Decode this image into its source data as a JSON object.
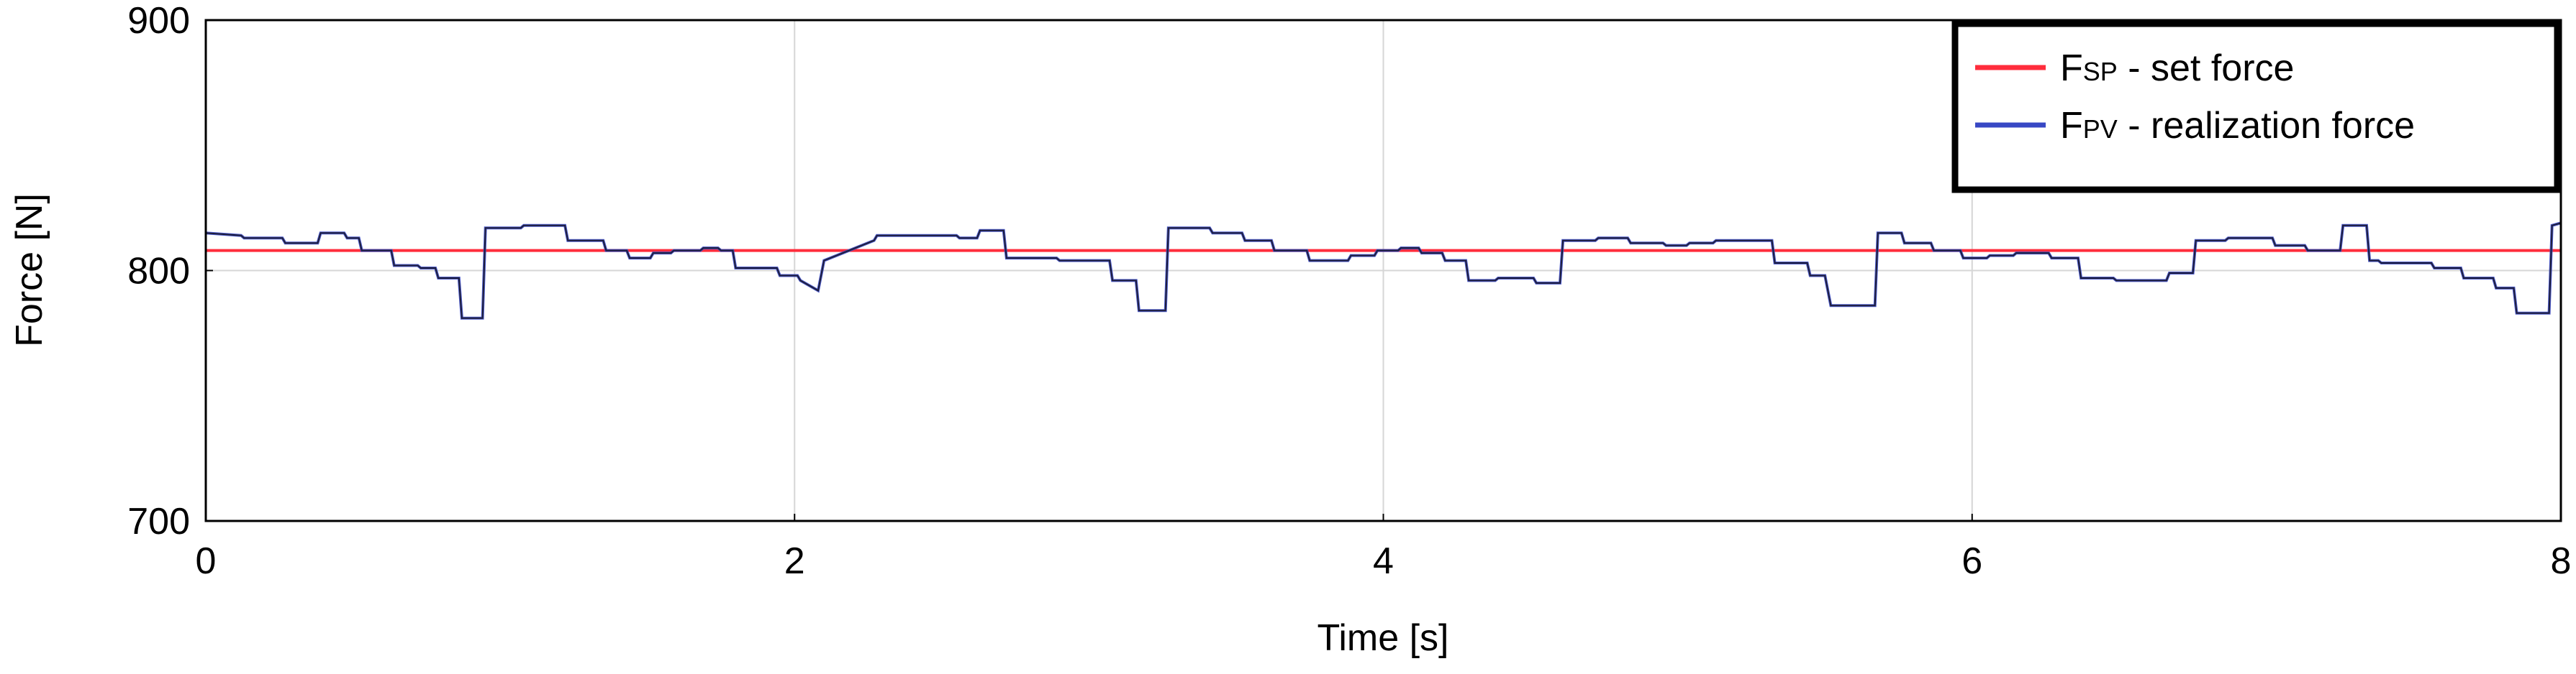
{
  "chart_data": {
    "type": "line",
    "title": "",
    "xlabel": "Time [s]",
    "ylabel": "Force [N]",
    "xlim": [
      0,
      8
    ],
    "ylim": [
      700,
      900
    ],
    "xticks": [
      "0",
      "2",
      "4",
      "6",
      "8"
    ],
    "yticks": [
      "700",
      "800",
      "900"
    ],
    "grid": true,
    "legend": {
      "position": "top-right",
      "frame": "thick"
    },
    "series": [
      {
        "name_main": "F",
        "name_sub": "SP",
        "name_rest": " - set force",
        "color": "#ff2d3c",
        "x": [
          0,
          8
        ],
        "y": [
          808,
          808
        ]
      },
      {
        "name_main": "F",
        "name_sub": "PV",
        "name_rest": " - realization force",
        "color": "#3848c4",
        "x": [
          0,
          0.12,
          0.13,
          0.26,
          0.27,
          0.38,
          0.39,
          0.47,
          0.48,
          0.52,
          0.53,
          0.63,
          0.64,
          0.72,
          0.73,
          0.78,
          0.79,
          0.86,
          0.87,
          0.94,
          0.95,
          1.07,
          1.08,
          1.22,
          1.23,
          1.35,
          1.36,
          1.43,
          1.44,
          1.51,
          1.52,
          1.58,
          1.59,
          1.68,
          1.69,
          1.74,
          1.75,
          1.79,
          1.8,
          1.94,
          1.95,
          2.01,
          2.02,
          2.08,
          2.1,
          2.27,
          2.28,
          2.55,
          2.56,
          2.62,
          2.63,
          2.71,
          2.72,
          2.89,
          2.9,
          3.07,
          3.08,
          3.16,
          3.17,
          3.26,
          3.27,
          3.41,
          3.42,
          3.52,
          3.53,
          3.62,
          3.63,
          3.74,
          3.75,
          3.88,
          3.89,
          3.97,
          3.98,
          4.05,
          4.06,
          4.12,
          4.13,
          4.2,
          4.21,
          4.28,
          4.29,
          4.38,
          4.39,
          4.51,
          4.52,
          4.6,
          4.61,
          4.72,
          4.73,
          4.83,
          4.84,
          4.95,
          4.96,
          5.03,
          5.04,
          5.12,
          5.13,
          5.32,
          5.33,
          5.44,
          5.45,
          5.5,
          5.52,
          5.67,
          5.68,
          5.76,
          5.77,
          5.86,
          5.87,
          5.96,
          5.97,
          6.05,
          6.06,
          6.14,
          6.15,
          6.26,
          6.27,
          6.36,
          6.37,
          6.48,
          6.49,
          6.66,
          6.67,
          6.75,
          6.76,
          6.86,
          6.87,
          7.02,
          7.03,
          7.13,
          7.14,
          7.25,
          7.26,
          7.34,
          7.35,
          7.38,
          7.39,
          7.56,
          7.57,
          7.66,
          7.67,
          7.77,
          7.78,
          7.84,
          7.85,
          7.96,
          7.97,
          8
        ],
        "y": [
          815,
          814,
          813,
          813,
          811,
          811,
          815,
          815,
          813,
          813,
          808,
          808,
          802,
          802,
          801,
          801,
          797,
          797,
          781,
          781,
          817,
          817,
          818,
          818,
          812,
          812,
          808,
          808,
          805,
          805,
          807,
          807,
          808,
          808,
          809,
          809,
          808,
          808,
          801,
          801,
          798,
          798,
          796,
          792,
          804,
          812,
          814,
          814,
          813,
          813,
          816,
          816,
          805,
          805,
          804,
          804,
          796,
          796,
          784,
          784,
          817,
          817,
          815,
          815,
          812,
          812,
          808,
          808,
          804,
          804,
          806,
          806,
          808,
          808,
          809,
          809,
          807,
          807,
          804,
          804,
          796,
          796,
          797,
          797,
          795,
          795,
          812,
          812,
          813,
          813,
          811,
          811,
          810,
          810,
          811,
          811,
          812,
          812,
          803,
          803,
          798,
          798,
          786,
          786,
          815,
          815,
          811,
          811,
          808,
          808,
          805,
          805,
          806,
          806,
          807,
          807,
          805,
          805,
          797,
          797,
          796,
          796,
          799,
          799,
          812,
          812,
          813,
          813,
          810,
          810,
          808,
          808,
          818,
          818,
          804,
          804,
          803,
          803,
          801,
          801,
          797,
          797,
          793,
          793,
          783,
          783,
          818,
          819
        ]
      }
    ]
  }
}
